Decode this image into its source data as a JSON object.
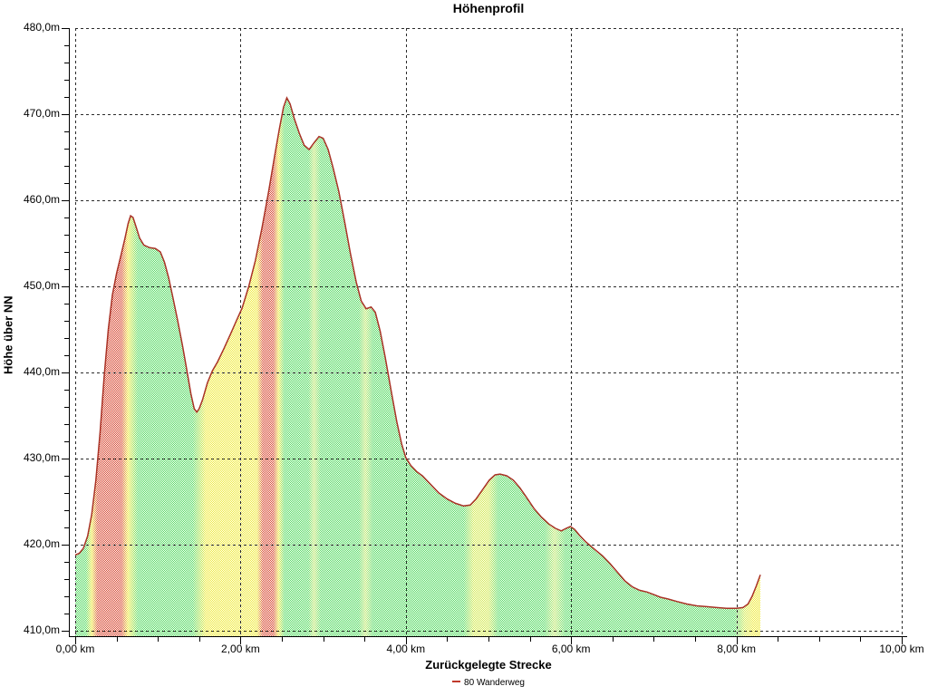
{
  "chart_data": {
    "type": "area",
    "title": "Höhenprofil",
    "xlabel": "Zurückgelegte Strecke",
    "ylabel": "Höhe über NN",
    "x_unit": "km",
    "y_unit": "m",
    "xlim": [
      0,
      10
    ],
    "ylim": [
      410,
      480
    ],
    "grid": "dashed",
    "legend_position": "bottom-center",
    "x_major_ticks": [
      0,
      2,
      4,
      6,
      8,
      10
    ],
    "x_tick_labels": [
      "0,00 km",
      "2,00 km",
      "4,00 km",
      "6,00 km",
      "8,00 km",
      "10,00 km"
    ],
    "x_minor_step": 0.5,
    "y_major_ticks": [
      410,
      420,
      430,
      440,
      450,
      460,
      470,
      480
    ],
    "y_tick_labels": [
      "410,0m",
      "420,0m",
      "430,0m",
      "440,0m",
      "450,0m",
      "460,0m",
      "470,0m",
      "480,0m"
    ],
    "y_minor_step": 2,
    "line_color": "#a93226",
    "legend_marker_color": "#c0392b",
    "slope_palette": {
      "g": "#52d95f",
      "y": "#efea38",
      "r": "#d6452f",
      "l": "#bfe769",
      "m": "#d3e94f"
    },
    "slope_stops": [
      [
        0.0,
        "g"
      ],
      [
        0.13,
        "g"
      ],
      [
        0.2,
        "y"
      ],
      [
        0.27,
        "r"
      ],
      [
        0.56,
        "r"
      ],
      [
        0.64,
        "y"
      ],
      [
        0.76,
        "g"
      ],
      [
        1.42,
        "g"
      ],
      [
        1.58,
        "y"
      ],
      [
        2.2,
        "y"
      ],
      [
        2.27,
        "r"
      ],
      [
        2.4,
        "r"
      ],
      [
        2.46,
        "y"
      ],
      [
        2.53,
        "g"
      ],
      [
        2.82,
        "g"
      ],
      [
        2.89,
        "l"
      ],
      [
        2.97,
        "g"
      ],
      [
        3.43,
        "g"
      ],
      [
        3.51,
        "l"
      ],
      [
        3.6,
        "g"
      ],
      [
        4.7,
        "g"
      ],
      [
        4.82,
        "m"
      ],
      [
        5.0,
        "m"
      ],
      [
        5.12,
        "g"
      ],
      [
        5.68,
        "g"
      ],
      [
        5.8,
        "l"
      ],
      [
        5.93,
        "g"
      ],
      [
        7.98,
        "g"
      ],
      [
        8.1,
        "m"
      ],
      [
        8.2,
        "y"
      ],
      [
        8.29,
        "y"
      ]
    ],
    "series": [
      {
        "name": "80 Wanderweg",
        "points": [
          [
            0.0,
            418.8
          ],
          [
            0.05,
            419.0
          ],
          [
            0.1,
            419.6
          ],
          [
            0.15,
            421.0
          ],
          [
            0.2,
            423.5
          ],
          [
            0.25,
            427.5
          ],
          [
            0.3,
            433.0
          ],
          [
            0.35,
            439.5
          ],
          [
            0.4,
            445.0
          ],
          [
            0.45,
            449.0
          ],
          [
            0.5,
            451.5
          ],
          [
            0.55,
            453.5
          ],
          [
            0.6,
            455.5
          ],
          [
            0.64,
            457.3
          ],
          [
            0.67,
            458.2
          ],
          [
            0.7,
            458.0
          ],
          [
            0.74,
            456.8
          ],
          [
            0.78,
            455.6
          ],
          [
            0.83,
            454.8
          ],
          [
            0.9,
            454.5
          ],
          [
            0.97,
            454.4
          ],
          [
            1.03,
            454.0
          ],
          [
            1.08,
            452.8
          ],
          [
            1.13,
            451.0
          ],
          [
            1.18,
            448.8
          ],
          [
            1.24,
            446.0
          ],
          [
            1.3,
            443.0
          ],
          [
            1.35,
            440.3
          ],
          [
            1.4,
            437.5
          ],
          [
            1.44,
            435.8
          ],
          [
            1.47,
            435.4
          ],
          [
            1.5,
            435.8
          ],
          [
            1.54,
            436.8
          ],
          [
            1.6,
            438.8
          ],
          [
            1.66,
            440.2
          ],
          [
            1.72,
            441.2
          ],
          [
            1.8,
            442.8
          ],
          [
            1.88,
            444.5
          ],
          [
            1.95,
            446.0
          ],
          [
            2.02,
            447.5
          ],
          [
            2.1,
            450.0
          ],
          [
            2.18,
            453.0
          ],
          [
            2.26,
            456.8
          ],
          [
            2.34,
            461.0
          ],
          [
            2.41,
            465.0
          ],
          [
            2.47,
            468.3
          ],
          [
            2.52,
            470.8
          ],
          [
            2.56,
            471.9
          ],
          [
            2.6,
            471.2
          ],
          [
            2.65,
            469.5
          ],
          [
            2.71,
            467.8
          ],
          [
            2.77,
            466.4
          ],
          [
            2.83,
            465.9
          ],
          [
            2.89,
            466.7
          ],
          [
            2.95,
            467.4
          ],
          [
            3.0,
            467.2
          ],
          [
            3.06,
            465.9
          ],
          [
            3.12,
            463.8
          ],
          [
            3.19,
            461.0
          ],
          [
            3.26,
            457.5
          ],
          [
            3.33,
            453.8
          ],
          [
            3.4,
            450.5
          ],
          [
            3.46,
            448.3
          ],
          [
            3.52,
            447.4
          ],
          [
            3.58,
            447.6
          ],
          [
            3.63,
            447.0
          ],
          [
            3.69,
            444.8
          ],
          [
            3.75,
            441.8
          ],
          [
            3.82,
            438.0
          ],
          [
            3.89,
            434.3
          ],
          [
            3.95,
            431.7
          ],
          [
            4.0,
            430.1
          ],
          [
            4.06,
            429.2
          ],
          [
            4.13,
            428.5
          ],
          [
            4.2,
            428.0
          ],
          [
            4.3,
            427.0
          ],
          [
            4.4,
            426.0
          ],
          [
            4.5,
            425.3
          ],
          [
            4.6,
            424.8
          ],
          [
            4.7,
            424.5
          ],
          [
            4.78,
            424.6
          ],
          [
            4.85,
            425.3
          ],
          [
            4.93,
            426.4
          ],
          [
            5.01,
            427.5
          ],
          [
            5.08,
            428.1
          ],
          [
            5.14,
            428.2
          ],
          [
            5.22,
            428.0
          ],
          [
            5.3,
            427.5
          ],
          [
            5.38,
            426.6
          ],
          [
            5.46,
            425.5
          ],
          [
            5.55,
            424.2
          ],
          [
            5.64,
            423.2
          ],
          [
            5.73,
            422.4
          ],
          [
            5.81,
            421.9
          ],
          [
            5.88,
            421.6
          ],
          [
            5.94,
            421.9
          ],
          [
            5.99,
            422.1
          ],
          [
            6.04,
            421.8
          ],
          [
            6.1,
            421.1
          ],
          [
            6.18,
            420.3
          ],
          [
            6.28,
            419.5
          ],
          [
            6.38,
            418.7
          ],
          [
            6.47,
            417.8
          ],
          [
            6.56,
            416.8
          ],
          [
            6.65,
            415.8
          ],
          [
            6.74,
            415.1
          ],
          [
            6.83,
            414.7
          ],
          [
            6.92,
            414.5
          ],
          [
            7.0,
            414.2
          ],
          [
            7.08,
            413.9
          ],
          [
            7.17,
            413.7
          ],
          [
            7.28,
            413.4
          ],
          [
            7.4,
            413.1
          ],
          [
            7.52,
            412.9
          ],
          [
            7.64,
            412.8
          ],
          [
            7.76,
            412.7
          ],
          [
            7.88,
            412.6
          ],
          [
            8.0,
            412.6
          ],
          [
            8.08,
            412.7
          ],
          [
            8.14,
            413.1
          ],
          [
            8.19,
            414.0
          ],
          [
            8.24,
            415.2
          ],
          [
            8.29,
            416.5
          ]
        ]
      }
    ]
  }
}
